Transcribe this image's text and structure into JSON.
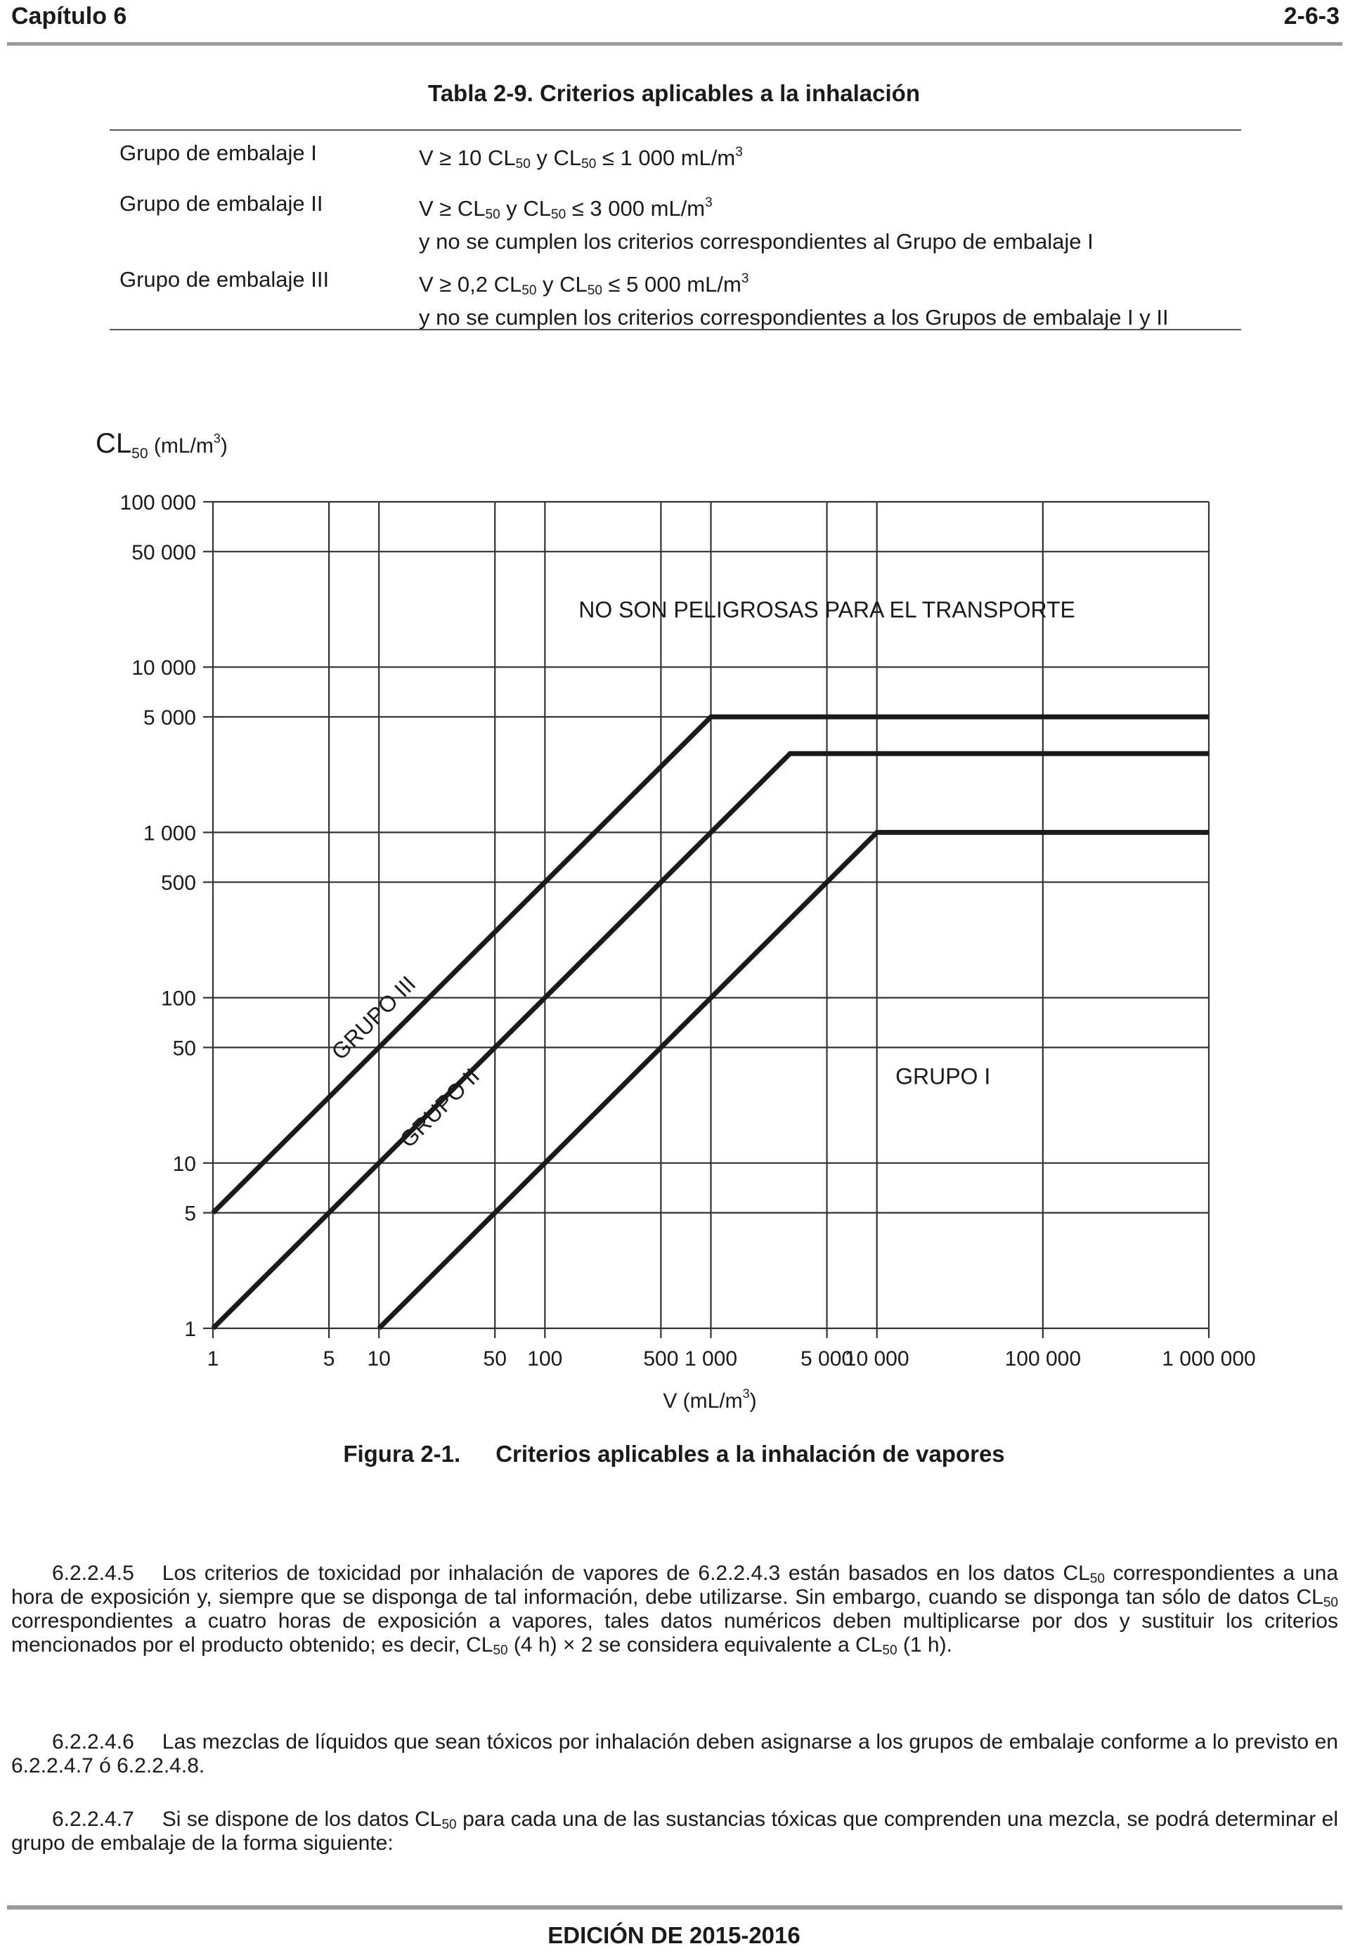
{
  "header": {
    "chapter": "Capítulo 6",
    "page": "2-6-3"
  },
  "table": {
    "title": "Tabla 2-9.  Criterios aplicables a la inhalación",
    "rows": [
      {
        "group": "Grupo de embalaje I",
        "c1": "V ≥ 10 CL",
        "c2": "50",
        "c3": " y CL",
        "c4": "50",
        "c5": " ≤ 1 000 mL/m",
        "c6": "3",
        "line2": ""
      },
      {
        "group": "Grupo de embalaje II",
        "c1": "V ≥ CL",
        "c2": "50",
        "c3": " y CL",
        "c4": "50",
        "c5": " ≤ 3 000 mL/m",
        "c6": "3",
        "line2": "y no se cumplen los criterios correspondientes al Grupo de embalaje I"
      },
      {
        "group": "Grupo de embalaje III",
        "c1": "V ≥ 0,2 CL",
        "c2": "50",
        "c3": " y CL",
        "c4": "50",
        "c5": " ≤ 5 000 mL/m",
        "c6": "3",
        "line2": "y no se cumplen los criterios correspondientes a los Grupos de embalaje I y II"
      }
    ]
  },
  "chart_data": {
    "type": "line",
    "y_label": {
      "main": "CL",
      "sub": "50",
      "unit": " (mL/m",
      "sup": "3",
      "close": ")"
    },
    "x_label": {
      "main": "V (mL/m",
      "sup": "3",
      "close": ")"
    },
    "x_scale": "log",
    "y_scale": "log",
    "xlim": [
      1,
      1000000
    ],
    "ylim": [
      1,
      100000
    ],
    "x_ticks": [
      {
        "v": 1,
        "label": "1"
      },
      {
        "v": 5,
        "label": "5"
      },
      {
        "v": 10,
        "label": "10"
      },
      {
        "v": 50,
        "label": "50"
      },
      {
        "v": 100,
        "label": "100"
      },
      {
        "v": 500,
        "label": "500"
      },
      {
        "v": 1000,
        "label": "1 000"
      },
      {
        "v": 5000,
        "label": "5 000"
      },
      {
        "v": 10000,
        "label": "10 000"
      },
      {
        "v": 100000,
        "label": "100 000"
      },
      {
        "v": 1000000,
        "label": "1 000 000"
      }
    ],
    "y_ticks": [
      {
        "v": 1,
        "label": "1"
      },
      {
        "v": 5,
        "label": "5"
      },
      {
        "v": 10,
        "label": "10"
      },
      {
        "v": 50,
        "label": "50"
      },
      {
        "v": 100,
        "label": "100"
      },
      {
        "v": 500,
        "label": "500"
      },
      {
        "v": 1000,
        "label": "1 000"
      },
      {
        "v": 5000,
        "label": "5 000"
      },
      {
        "v": 10000,
        "label": "10 000"
      },
      {
        "v": 50000,
        "label": "50 000"
      },
      {
        "v": 100000,
        "label": "100 000"
      }
    ],
    "grid": true,
    "series": [
      {
        "name": "GRUPO III",
        "points": [
          [
            1,
            5
          ],
          [
            1000,
            5000
          ],
          [
            1000000,
            5000
          ]
        ]
      },
      {
        "name": "GRUPO II",
        "points": [
          [
            1,
            1
          ],
          [
            3000,
            3000
          ],
          [
            1000000,
            3000
          ]
        ]
      },
      {
        "name": "GRUPO I",
        "points": [
          [
            10,
            1
          ],
          [
            10000,
            1000
          ],
          [
            1000000,
            1000
          ]
        ]
      }
    ],
    "annotations": [
      {
        "text": "NO SON PELIGROSAS PARA EL TRANSPORTE",
        "x": 5000,
        "y": 20000
      }
    ]
  },
  "figure_caption": {
    "number": "Figura 2-1.",
    "title": "Criterios aplicables a la inhalación de vapores"
  },
  "paragraphs": {
    "p1": {
      "num": "6.2.2.4.5",
      "t1": "Los criterios de toxicidad por inhalación de vapores de 6.2.2.4.3 están basados en los datos CL",
      "s1": "50",
      "t2": " correspondientes a una hora de exposición y, siempre que se disponga de tal información, debe utilizarse. Sin embargo, cuando se disponga tan sólo de datos CL",
      "s2": "50",
      "t3": " correspondientes a cuatro horas de exposición a vapores, tales datos numéricos deben multiplicarse por dos y sustituir los criterios mencionados por el producto obtenido; es decir, CL",
      "s3": "50",
      "t4": " (4 h) × 2 se considera equivalente a CL",
      "s4": "50",
      "t5": " (1 h)."
    },
    "p2": {
      "num": "6.2.2.4.6",
      "t1": "Las mezclas de líquidos que sean tóxicos por inhalación deben asignarse a los grupos de embalaje conforme a lo previsto en 6.2.2.4.7 ó 6.2.2.4.8."
    },
    "p3": {
      "num": "6.2.2.4.7",
      "t1": "Si se dispone de los datos CL",
      "s1": "50",
      "t2": " para cada una de las sustancias tóxicas que comprenden una mezcla, se podrá determinar el grupo de embalaje de la forma siguiente:"
    }
  },
  "footer": {
    "edition": "EDICIÓN DE 2015-2016"
  }
}
